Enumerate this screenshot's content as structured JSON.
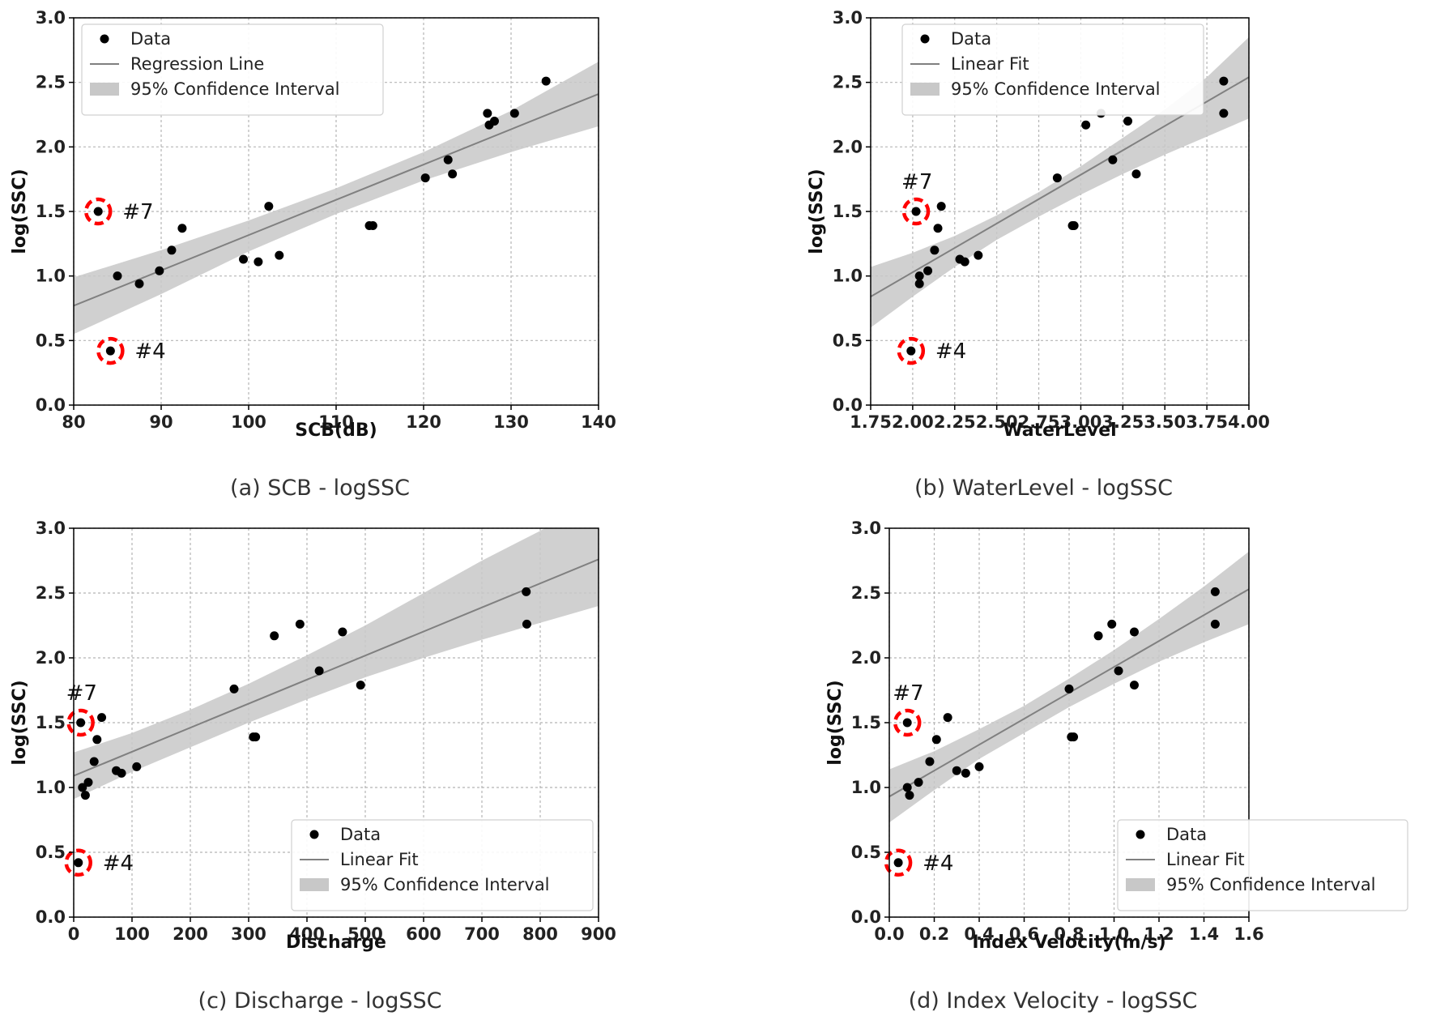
{
  "chart_data": [
    {
      "type": "scatter",
      "caption": "(a) SCB - logSSC",
      "xlabel": "SCB(dB)",
      "ylabel": "log(SSC)",
      "xlim": [
        80,
        140
      ],
      "ylim": [
        0.0,
        3.0
      ],
      "xticks": [
        80,
        90,
        100,
        110,
        120,
        130,
        140
      ],
      "xtick_labels": [
        "80",
        "90",
        "100",
        "110",
        "120",
        "130",
        "140"
      ],
      "yticks": [
        0.0,
        0.5,
        1.0,
        1.5,
        2.0,
        2.5,
        3.0
      ],
      "ytick_labels": [
        "0.0",
        "0.5",
        "1.0",
        "1.5",
        "2.0",
        "2.5",
        "3.0"
      ],
      "grid": true,
      "legend_position": "top-left",
      "legend": [
        "Data",
        "Regression Line",
        "95% Confidence Interval"
      ],
      "points": {
        "x": [
          84.2,
          82.8,
          85.0,
          87.5,
          89.8,
          91.2,
          92.4,
          99.4,
          101.1,
          102.3,
          103.5,
          113.8,
          114.2,
          120.2,
          122.8,
          123.3,
          127.3,
          127.5,
          128.1,
          130.4,
          134.0
        ],
        "y": [
          0.42,
          1.5,
          1.0,
          0.94,
          1.04,
          1.2,
          1.37,
          1.13,
          1.11,
          1.54,
          1.16,
          1.39,
          1.39,
          1.76,
          1.9,
          1.79,
          2.26,
          2.17,
          2.2,
          2.26,
          2.51
        ]
      },
      "fit": {
        "x": [
          80,
          140
        ],
        "y": [
          0.77,
          2.41
        ]
      },
      "ci": {
        "x": [
          80,
          90,
          100,
          110,
          120,
          130,
          140
        ],
        "upper": [
          0.99,
          1.2,
          1.43,
          1.68,
          1.96,
          2.28,
          2.66
        ],
        "lower": [
          0.55,
          0.86,
          1.19,
          1.48,
          1.74,
          1.96,
          2.16
        ]
      },
      "annotations": [
        {
          "label": "#7",
          "x": 82.8,
          "y": 1.5,
          "side": "right"
        },
        {
          "label": "#4",
          "x": 84.2,
          "y": 0.42,
          "side": "right"
        }
      ]
    },
    {
      "type": "scatter",
      "caption": "(b) WaterLevel - logSSC",
      "xlabel": "WaterLevel",
      "ylabel": "log(SSC)",
      "xlim": [
        1.75,
        4.0
      ],
      "ylim": [
        0.0,
        3.0
      ],
      "xticks": [
        1.75,
        2.0,
        2.25,
        2.5,
        2.75,
        3.0,
        3.25,
        3.5,
        3.75,
        4.0
      ],
      "xtick_labels": [
        "1.75",
        "2.00",
        "2.25",
        "2.50",
        "2.75",
        "3.00",
        "3.25",
        "3.50",
        "3.75",
        "4.00"
      ],
      "yticks": [
        0.0,
        0.5,
        1.0,
        1.5,
        2.0,
        2.5,
        3.0
      ],
      "ytick_labels": [
        "0.0",
        "0.5",
        "1.0",
        "1.5",
        "2.0",
        "2.5",
        "3.0"
      ],
      "grid": true,
      "legend_position": "top-left",
      "legend": [
        "Data",
        "Linear Fit",
        "95% Confidence Interval"
      ],
      "points": {
        "x": [
          1.99,
          2.02,
          2.04,
          2.04,
          2.09,
          2.13,
          2.15,
          2.17,
          2.28,
          2.31,
          2.39,
          2.86,
          2.95,
          2.96,
          3.03,
          3.12,
          3.19,
          3.28,
          3.33,
          3.85,
          3.85
        ],
        "y": [
          0.42,
          1.5,
          1.0,
          0.94,
          1.04,
          1.2,
          1.37,
          1.54,
          1.13,
          1.11,
          1.16,
          1.76,
          1.39,
          1.39,
          2.17,
          2.26,
          1.9,
          2.2,
          1.79,
          2.51,
          2.26
        ]
      },
      "fit": {
        "x": [
          1.75,
          4.0
        ],
        "y": [
          0.84,
          2.54
        ]
      },
      "ci": {
        "x": [
          1.75,
          2.0,
          2.25,
          2.5,
          2.75,
          3.0,
          3.25,
          3.5,
          3.75,
          4.0
        ],
        "upper": [
          1.07,
          1.18,
          1.31,
          1.47,
          1.65,
          1.85,
          2.07,
          2.29,
          2.54,
          2.85
        ],
        "lower": [
          0.6,
          0.84,
          1.07,
          1.28,
          1.46,
          1.63,
          1.79,
          1.94,
          2.08,
          2.22
        ]
      },
      "annotations": [
        {
          "label": "#7",
          "x": 2.02,
          "y": 1.5,
          "side": "above"
        },
        {
          "label": "#4",
          "x": 1.99,
          "y": 0.42,
          "side": "right"
        }
      ]
    },
    {
      "type": "scatter",
      "caption": "(c) Discharge - logSSC",
      "xlabel": "Discharge",
      "ylabel": "log(SSC)",
      "xlim": [
        0,
        900
      ],
      "ylim": [
        0.0,
        3.0
      ],
      "xticks": [
        0,
        100,
        200,
        300,
        400,
        500,
        600,
        700,
        800,
        900
      ],
      "xtick_labels": [
        "0",
        "100",
        "200",
        "300",
        "400",
        "500",
        "600",
        "700",
        "800",
        "900"
      ],
      "yticks": [
        0.0,
        0.5,
        1.0,
        1.5,
        2.0,
        2.5,
        3.0
      ],
      "ytick_labels": [
        "0.0",
        "0.5",
        "1.0",
        "1.5",
        "2.0",
        "2.5",
        "3.0"
      ],
      "grid": true,
      "legend_position": "bottom-right",
      "legend": [
        "Data",
        "Linear Fit",
        "95% Confidence Interval"
      ],
      "points": {
        "x": [
          8,
          12,
          15,
          20,
          25,
          35,
          40,
          48,
          73,
          82,
          108,
          275,
          308,
          312,
          344,
          388,
          421,
          461,
          492,
          776,
          777
        ],
        "y": [
          0.42,
          1.5,
          1.0,
          0.94,
          1.04,
          1.2,
          1.37,
          1.54,
          1.13,
          1.11,
          1.16,
          1.76,
          1.39,
          1.39,
          2.17,
          2.26,
          1.9,
          2.2,
          1.79,
          2.51,
          2.26
        ]
      },
      "fit": {
        "x": [
          0,
          900
        ],
        "y": [
          1.09,
          2.76
        ]
      },
      "ci": {
        "x": [
          0,
          100,
          200,
          300,
          400,
          500,
          600,
          700,
          800,
          900
        ],
        "upper": [
          1.27,
          1.42,
          1.6,
          1.8,
          2.02,
          2.25,
          2.5,
          2.75,
          2.98,
          3.24
        ],
        "lower": [
          0.91,
          1.12,
          1.31,
          1.5,
          1.68,
          1.85,
          2.0,
          2.14,
          2.27,
          2.4
        ]
      },
      "annotations": [
        {
          "label": "#7",
          "x": 12,
          "y": 1.5,
          "side": "above"
        },
        {
          "label": "#4",
          "x": 8,
          "y": 0.42,
          "side": "right"
        }
      ]
    },
    {
      "type": "scatter",
      "caption": "(d) Index Velocity - logSSC",
      "xlabel": "Index Velocity(m/s)",
      "ylabel": "log(SSC)",
      "xlim": [
        0.0,
        1.6
      ],
      "ylim": [
        0.0,
        3.0
      ],
      "xticks": [
        0.0,
        0.2,
        0.4,
        0.6,
        0.8,
        1.0,
        1.2,
        1.4,
        1.6
      ],
      "xtick_labels": [
        "0.0",
        "0.2",
        "0.4",
        "0.6",
        "0.8",
        "1.0",
        "1.2",
        "1.4",
        "1.6"
      ],
      "yticks": [
        0.0,
        0.5,
        1.0,
        1.5,
        2.0,
        2.5,
        3.0
      ],
      "ytick_labels": [
        "0.0",
        "0.5",
        "1.0",
        "1.5",
        "2.0",
        "2.5",
        "3.0"
      ],
      "grid": true,
      "legend_position": "bottom-right",
      "legend": [
        "Data",
        "Linear Fit",
        "95% Confidence Interval"
      ],
      "points": {
        "x": [
          0.04,
          0.08,
          0.08,
          0.09,
          0.13,
          0.18,
          0.21,
          0.26,
          0.3,
          0.34,
          0.4,
          0.8,
          0.81,
          0.82,
          0.93,
          0.99,
          1.02,
          1.09,
          1.09,
          1.45,
          1.45
        ],
        "y": [
          0.42,
          1.5,
          1.0,
          0.94,
          1.04,
          1.2,
          1.37,
          1.54,
          1.13,
          1.11,
          1.16,
          1.76,
          1.39,
          1.39,
          2.17,
          2.26,
          1.9,
          2.2,
          1.79,
          2.51,
          2.26
        ]
      },
      "fit": {
        "x": [
          0.0,
          1.6
        ],
        "y": [
          0.93,
          2.53
        ]
      },
      "ci": {
        "x": [
          0.0,
          0.2,
          0.4,
          0.6,
          0.8,
          1.0,
          1.2,
          1.4,
          1.6
        ],
        "upper": [
          1.14,
          1.28,
          1.45,
          1.63,
          1.84,
          2.06,
          2.3,
          2.55,
          2.82
        ],
        "lower": [
          0.73,
          0.98,
          1.22,
          1.42,
          1.62,
          1.8,
          1.97,
          2.12,
          2.26
        ]
      },
      "annotations": [
        {
          "label": "#7",
          "x": 0.08,
          "y": 1.5,
          "side": "above"
        },
        {
          "label": "#4",
          "x": 0.04,
          "y": 0.42,
          "side": "right"
        }
      ]
    }
  ],
  "colors": {
    "point": "#000000",
    "fit_line": "#808080",
    "ci_fill": "#c8c8c8",
    "grid": "#b5b5b5",
    "axis": "#000000",
    "highlight_circle": "#ff0000"
  }
}
